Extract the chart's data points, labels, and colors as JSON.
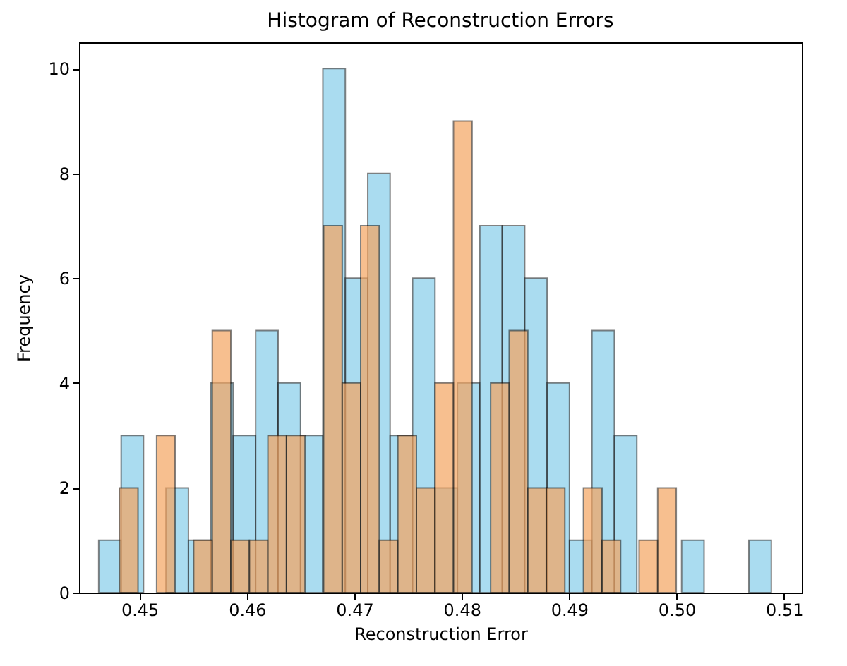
{
  "chart_data": {
    "type": "histogram",
    "title": "Histogram of Reconstruction Errors",
    "xlabel": "Reconstruction Error",
    "ylabel": "Frequency",
    "xlim": [
      0.44437,
      0.51166
    ],
    "ylim": [
      0,
      10.5
    ],
    "xticks": [
      0.45,
      0.46,
      0.47,
      0.48,
      0.49,
      {
        "value": 0.5,
        "label": "0.50"
      },
      0.51
    ],
    "yticks": [
      0,
      2,
      4,
      6,
      8,
      10
    ],
    "bins": [
      0.4462,
      0.44829,
      0.45037,
      0.45246,
      0.45455,
      0.45664,
      0.45872,
      0.46081,
      0.4629,
      0.46499,
      0.46707,
      0.46916,
      0.47125,
      0.47333,
      0.47542,
      0.47751,
      0.4796,
      0.48168,
      0.48377,
      0.48586,
      0.48795,
      0.49003,
      0.49212,
      0.49421,
      0.4963,
      0.49838,
      0.50047,
      0.50256,
      0.50464,
      0.50673,
      0.50882
    ],
    "series": [
      {
        "color": "#87ceeb",
        "values": [
          1,
          3,
          0,
          2,
          1,
          4,
          3,
          5,
          4,
          3,
          10,
          6,
          8,
          3,
          6,
          2,
          4,
          7,
          7,
          6,
          4,
          1,
          5,
          3,
          0,
          0,
          1,
          0,
          0,
          1
        ]
      },
      {
        "color": "#f4a460",
        "bins": [
          0.44813,
          0.44986,
          0.45159,
          0.45331,
          0.45504,
          0.45677,
          0.4585,
          0.46023,
          0.46195,
          0.46368,
          0.46541,
          0.46714,
          0.46887,
          0.47059,
          0.47232,
          0.47405,
          0.47578,
          0.47751,
          0.47923,
          0.48096,
          0.48269,
          0.48442,
          0.48615,
          0.48787,
          0.4896,
          0.49133,
          0.49306,
          0.49479,
          0.49651,
          0.49824,
          0.49997
        ],
        "values": [
          2,
          0,
          3,
          0,
          1,
          5,
          1,
          1,
          3,
          3,
          0,
          7,
          4,
          7,
          1,
          3,
          2,
          4,
          9,
          0,
          4,
          5,
          2,
          2,
          0,
          2,
          1,
          0,
          1,
          2
        ]
      }
    ]
  }
}
